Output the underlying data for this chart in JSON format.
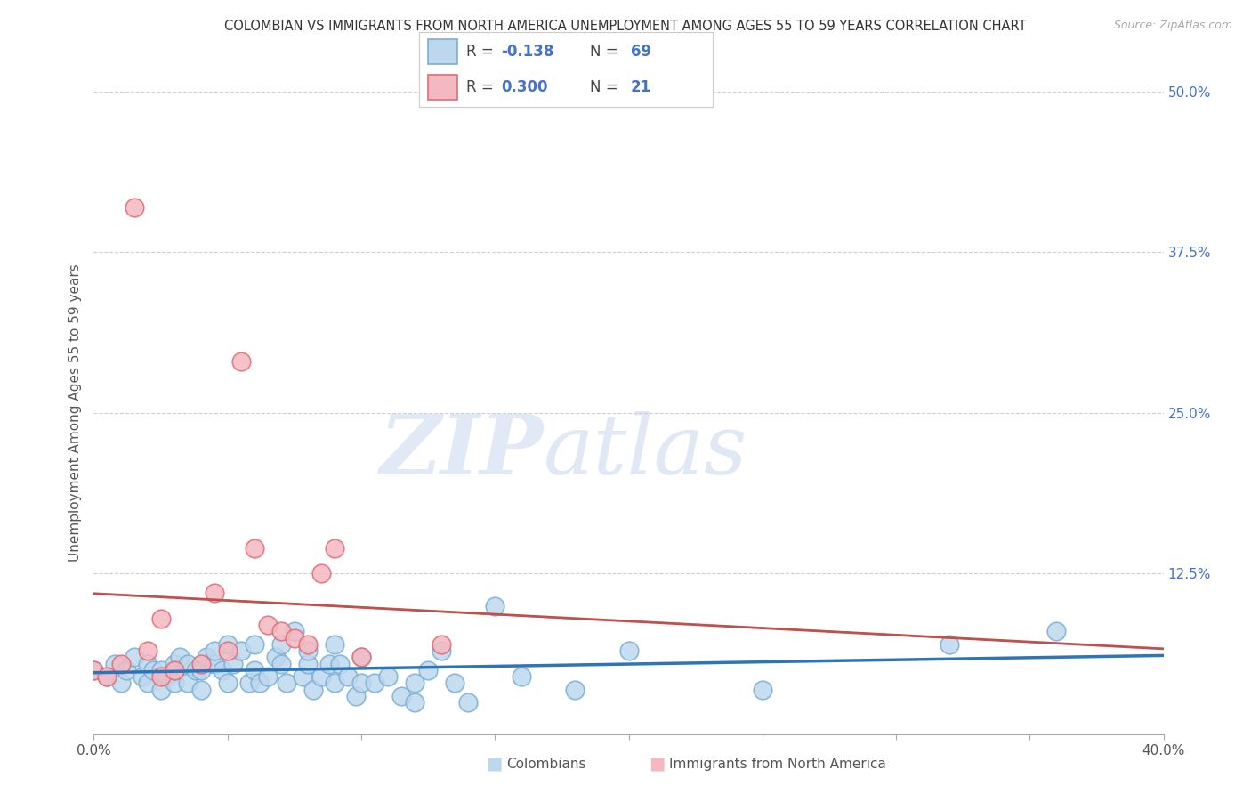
{
  "title": "COLOMBIAN VS IMMIGRANTS FROM NORTH AMERICA UNEMPLOYMENT AMONG AGES 55 TO 59 YEARS CORRELATION CHART",
  "source": "Source: ZipAtlas.com",
  "ylabel": "Unemployment Among Ages 55 to 59 years",
  "xlim": [
    0.0,
    0.4
  ],
  "ylim": [
    0.0,
    0.5
  ],
  "xticks": [
    0.0,
    0.05,
    0.1,
    0.15,
    0.2,
    0.25,
    0.3,
    0.35,
    0.4
  ],
  "yticks_right": [
    0.0,
    0.125,
    0.25,
    0.375,
    0.5
  ],
  "ytick_labels_right": [
    "",
    "12.5%",
    "25.0%",
    "37.5%",
    "50.0%"
  ],
  "blue_color": "#7bafd4",
  "pink_color": "#e06c75",
  "blue_fill": "#bdd7ee",
  "pink_fill": "#f4b8c1",
  "trendline_blue_color": "#2e75b6",
  "trendline_pink_color": "#c0504d",
  "trendline_pink_dash_color": "#c8a0a0",
  "R_blue": -0.138,
  "N_blue": 69,
  "R_pink": 0.3,
  "N_pink": 21,
  "watermark_zip": "ZIP",
  "watermark_atlas": "atlas",
  "grid_color": "#d0d0d0",
  "background_color": "#ffffff",
  "title_fontsize": 10.5,
  "axis_label_fontsize": 11,
  "tick_label_fontsize": 11,
  "blue_scatter_x": [
    0.0,
    0.005,
    0.008,
    0.01,
    0.012,
    0.015,
    0.018,
    0.02,
    0.02,
    0.022,
    0.025,
    0.025,
    0.027,
    0.03,
    0.03,
    0.03,
    0.032,
    0.035,
    0.035,
    0.038,
    0.04,
    0.04,
    0.042,
    0.045,
    0.045,
    0.048,
    0.05,
    0.05,
    0.052,
    0.055,
    0.058,
    0.06,
    0.06,
    0.062,
    0.065,
    0.068,
    0.07,
    0.07,
    0.072,
    0.075,
    0.078,
    0.08,
    0.08,
    0.082,
    0.085,
    0.088,
    0.09,
    0.09,
    0.092,
    0.095,
    0.098,
    0.1,
    0.1,
    0.105,
    0.11,
    0.115,
    0.12,
    0.12,
    0.125,
    0.13,
    0.135,
    0.14,
    0.15,
    0.16,
    0.18,
    0.2,
    0.25,
    0.32,
    0.36
  ],
  "blue_scatter_y": [
    0.05,
    0.045,
    0.055,
    0.04,
    0.05,
    0.06,
    0.045,
    0.04,
    0.055,
    0.05,
    0.035,
    0.05,
    0.045,
    0.04,
    0.05,
    0.055,
    0.06,
    0.04,
    0.055,
    0.05,
    0.035,
    0.05,
    0.06,
    0.055,
    0.065,
    0.05,
    0.04,
    0.07,
    0.055,
    0.065,
    0.04,
    0.05,
    0.07,
    0.04,
    0.045,
    0.06,
    0.055,
    0.07,
    0.04,
    0.08,
    0.045,
    0.055,
    0.065,
    0.035,
    0.045,
    0.055,
    0.04,
    0.07,
    0.055,
    0.045,
    0.03,
    0.04,
    0.06,
    0.04,
    0.045,
    0.03,
    0.04,
    0.025,
    0.05,
    0.065,
    0.04,
    0.025,
    0.1,
    0.045,
    0.035,
    0.065,
    0.035,
    0.07,
    0.08
  ],
  "pink_scatter_x": [
    0.0,
    0.005,
    0.01,
    0.015,
    0.02,
    0.025,
    0.025,
    0.03,
    0.04,
    0.045,
    0.05,
    0.055,
    0.06,
    0.065,
    0.07,
    0.075,
    0.08,
    0.085,
    0.09,
    0.1,
    0.13
  ],
  "pink_scatter_y": [
    0.05,
    0.045,
    0.055,
    0.41,
    0.065,
    0.045,
    0.09,
    0.05,
    0.055,
    0.11,
    0.065,
    0.29,
    0.145,
    0.085,
    0.08,
    0.075,
    0.07,
    0.125,
    0.145,
    0.06,
    0.07
  ]
}
